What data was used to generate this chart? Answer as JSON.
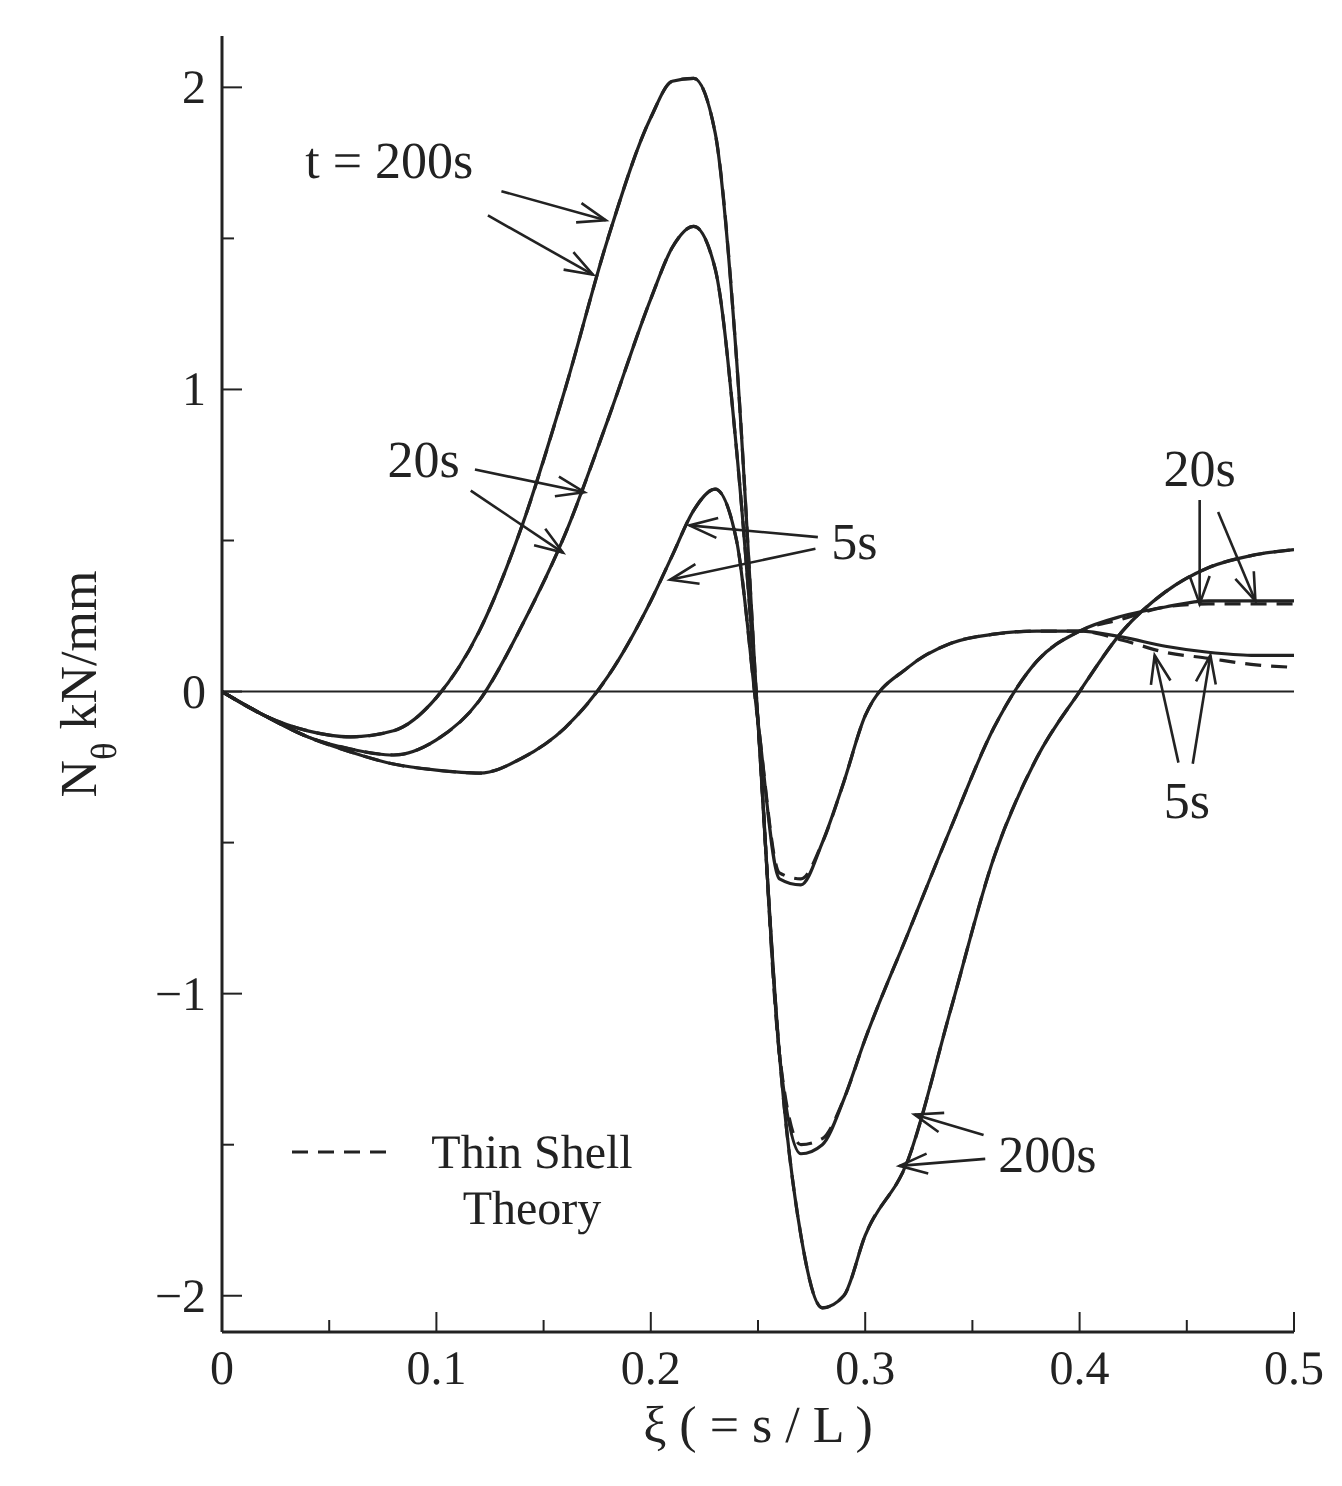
{
  "chart_data": {
    "type": "line",
    "xlabel": "ξ ( = s / L )",
    "ylabel": "N$_{θ}$  kN/mm",
    "xlim": [
      0,
      0.5
    ],
    "xticks": [
      0,
      {
        "value": 0.05,
        "label": null
      },
      0.1,
      {
        "value": 0.15,
        "label": null
      },
      0.2,
      {
        "value": 0.25,
        "label": null
      },
      0.3,
      {
        "value": 0.35,
        "label": null
      },
      0.4,
      {
        "value": 0.45,
        "label": null
      },
      0.5
    ],
    "ylim": [
      -2.12,
      2.17
    ],
    "yticks": [
      -2,
      {
        "value": -1.5,
        "label": null
      },
      -1,
      {
        "value": -0.5,
        "label": null
      },
      0,
      {
        "value": 0.5,
        "label": null
      },
      1,
      {
        "value": 1.5,
        "label": null
      },
      2
    ],
    "ref_lines": [
      {
        "axis": "y",
        "value": 0,
        "color": "#222222"
      }
    ],
    "grid": false,
    "legend": "bottom left",
    "marker": "none",
    "series": [
      {
        "color": "#222222",
        "line_style": "solid",
        "x": [
          0,
          0.02,
          0.04,
          0.06,
          0.08,
          0.1,
          0.12,
          0.14,
          0.16,
          0.18,
          0.2,
          0.21,
          0.22,
          0.23,
          0.24,
          0.25,
          0.26,
          0.27,
          0.28,
          0.29,
          0.3,
          0.32,
          0.34,
          0.36,
          0.38,
          0.4,
          0.42,
          0.44,
          0.46,
          0.48,
          0.5
        ],
        "values": [
          0,
          -0.08,
          -0.13,
          -0.15,
          -0.13,
          -0.02,
          0.2,
          0.55,
          1.0,
          1.5,
          1.9,
          2.02,
          2.03,
          1.85,
          1.1,
          -0.1,
          -1.2,
          -1.8,
          -2.04,
          -2.0,
          -1.8,
          -1.55,
          -1.05,
          -0.55,
          -0.22,
          0.0,
          0.2,
          0.33,
          0.41,
          0.45,
          0.47
        ]
      },
      {
        "color": "#222222",
        "line_style": "solid",
        "x": [
          0,
          0.02,
          0.04,
          0.06,
          0.08,
          0.1,
          0.12,
          0.14,
          0.16,
          0.18,
          0.2,
          0.21,
          0.22,
          0.23,
          0.24,
          0.25,
          0.26,
          0.27,
          0.28,
          0.29,
          0.3,
          0.32,
          0.34,
          0.36,
          0.38,
          0.4,
          0.42,
          0.44,
          0.46,
          0.48,
          0.5
        ],
        "values": [
          0,
          -0.08,
          -0.15,
          -0.19,
          -0.21,
          -0.16,
          -0.03,
          0.22,
          0.52,
          0.9,
          1.3,
          1.47,
          1.54,
          1.4,
          0.8,
          -0.1,
          -1.2,
          -1.53,
          -1.5,
          -1.35,
          -1.15,
          -0.8,
          -0.45,
          -0.12,
          0.1,
          0.2,
          0.25,
          0.28,
          0.3,
          0.3,
          0.3
        ]
      },
      {
        "color": "#222222",
        "line_style": "solid",
        "x": [
          0,
          0.02,
          0.04,
          0.06,
          0.08,
          0.1,
          0.12,
          0.14,
          0.16,
          0.18,
          0.2,
          0.21,
          0.22,
          0.23,
          0.24,
          0.25,
          0.26,
          0.27,
          0.28,
          0.29,
          0.3,
          0.32,
          0.34,
          0.36,
          0.38,
          0.4,
          0.42,
          0.44,
          0.46,
          0.48,
          0.5
        ],
        "values": [
          0,
          -0.08,
          -0.15,
          -0.2,
          -0.24,
          -0.26,
          -0.27,
          -0.22,
          -0.12,
          0.05,
          0.3,
          0.45,
          0.6,
          0.67,
          0.5,
          -0.1,
          -0.62,
          -0.64,
          -0.5,
          -0.3,
          -0.08,
          0.08,
          0.16,
          0.19,
          0.2,
          0.2,
          0.18,
          0.15,
          0.13,
          0.12,
          0.12
        ]
      },
      {
        "name": "Thin Shell Theory",
        "color": "#222222",
        "line_style": "dashed",
        "x": [
          0,
          0.02,
          0.04,
          0.06,
          0.08,
          0.1,
          0.12,
          0.14,
          0.16,
          0.18,
          0.2,
          0.21,
          0.22,
          0.23,
          0.24,
          0.25,
          0.26,
          0.27,
          0.28,
          0.29,
          0.3,
          0.32,
          0.34,
          0.36,
          0.38,
          0.4,
          0.42,
          0.44,
          0.46,
          0.48,
          0.5
        ],
        "values": [
          0,
          -0.08,
          -0.13,
          -0.15,
          -0.13,
          -0.02,
          0.2,
          0.55,
          1.0,
          1.5,
          1.9,
          2.02,
          2.03,
          1.85,
          1.1,
          -0.1,
          -1.2,
          -1.8,
          -2.04,
          -2.0,
          -1.8,
          -1.55,
          -1.05,
          -0.55,
          -0.22,
          0.0,
          0.2,
          0.33,
          0.41,
          0.45,
          0.47
        ]
      },
      {
        "color": "#222222",
        "line_style": "dashed",
        "x": [
          0,
          0.02,
          0.04,
          0.06,
          0.08,
          0.1,
          0.12,
          0.14,
          0.16,
          0.18,
          0.2,
          0.21,
          0.22,
          0.23,
          0.24,
          0.25,
          0.26,
          0.27,
          0.28,
          0.29,
          0.3,
          0.32,
          0.34,
          0.36,
          0.38,
          0.4,
          0.42,
          0.44,
          0.46,
          0.48,
          0.5
        ],
        "values": [
          0,
          -0.08,
          -0.15,
          -0.19,
          -0.21,
          -0.16,
          -0.03,
          0.22,
          0.52,
          0.9,
          1.3,
          1.47,
          1.54,
          1.4,
          0.8,
          -0.1,
          -1.2,
          -1.5,
          -1.48,
          -1.35,
          -1.15,
          -0.8,
          -0.45,
          -0.12,
          0.1,
          0.2,
          0.24,
          0.28,
          0.29,
          0.29,
          0.29
        ]
      },
      {
        "color": "#222222",
        "line_style": "dashed",
        "x": [
          0,
          0.02,
          0.04,
          0.06,
          0.08,
          0.1,
          0.12,
          0.14,
          0.16,
          0.18,
          0.2,
          0.21,
          0.22,
          0.23,
          0.24,
          0.25,
          0.26,
          0.27,
          0.28,
          0.29,
          0.3,
          0.32,
          0.34,
          0.36,
          0.38,
          0.4,
          0.42,
          0.44,
          0.46,
          0.48,
          0.5
        ],
        "values": [
          0,
          -0.08,
          -0.15,
          -0.2,
          -0.24,
          -0.26,
          -0.27,
          -0.22,
          -0.12,
          0.05,
          0.3,
          0.45,
          0.6,
          0.67,
          0.5,
          -0.1,
          -0.6,
          -0.62,
          -0.5,
          -0.3,
          -0.08,
          0.08,
          0.16,
          0.19,
          0.2,
          0.2,
          0.17,
          0.13,
          0.11,
          0.09,
          0.08
        ]
      }
    ],
    "annotations": [
      {
        "text": "t = 200s",
        "x": 0.179,
        "y": 1.56
      },
      {
        "text": "20s",
        "x": 0.169,
        "y": 0.66
      },
      {
        "text": "5s",
        "x": 0.218,
        "y": 0.55
      },
      {
        "text": "20s",
        "x": 0.456,
        "y": 0.29
      },
      {
        "text": "5s",
        "x": 0.435,
        "y": 0.12
      },
      {
        "text": "200s",
        "x": 0.323,
        "y": -1.4
      }
    ]
  }
}
